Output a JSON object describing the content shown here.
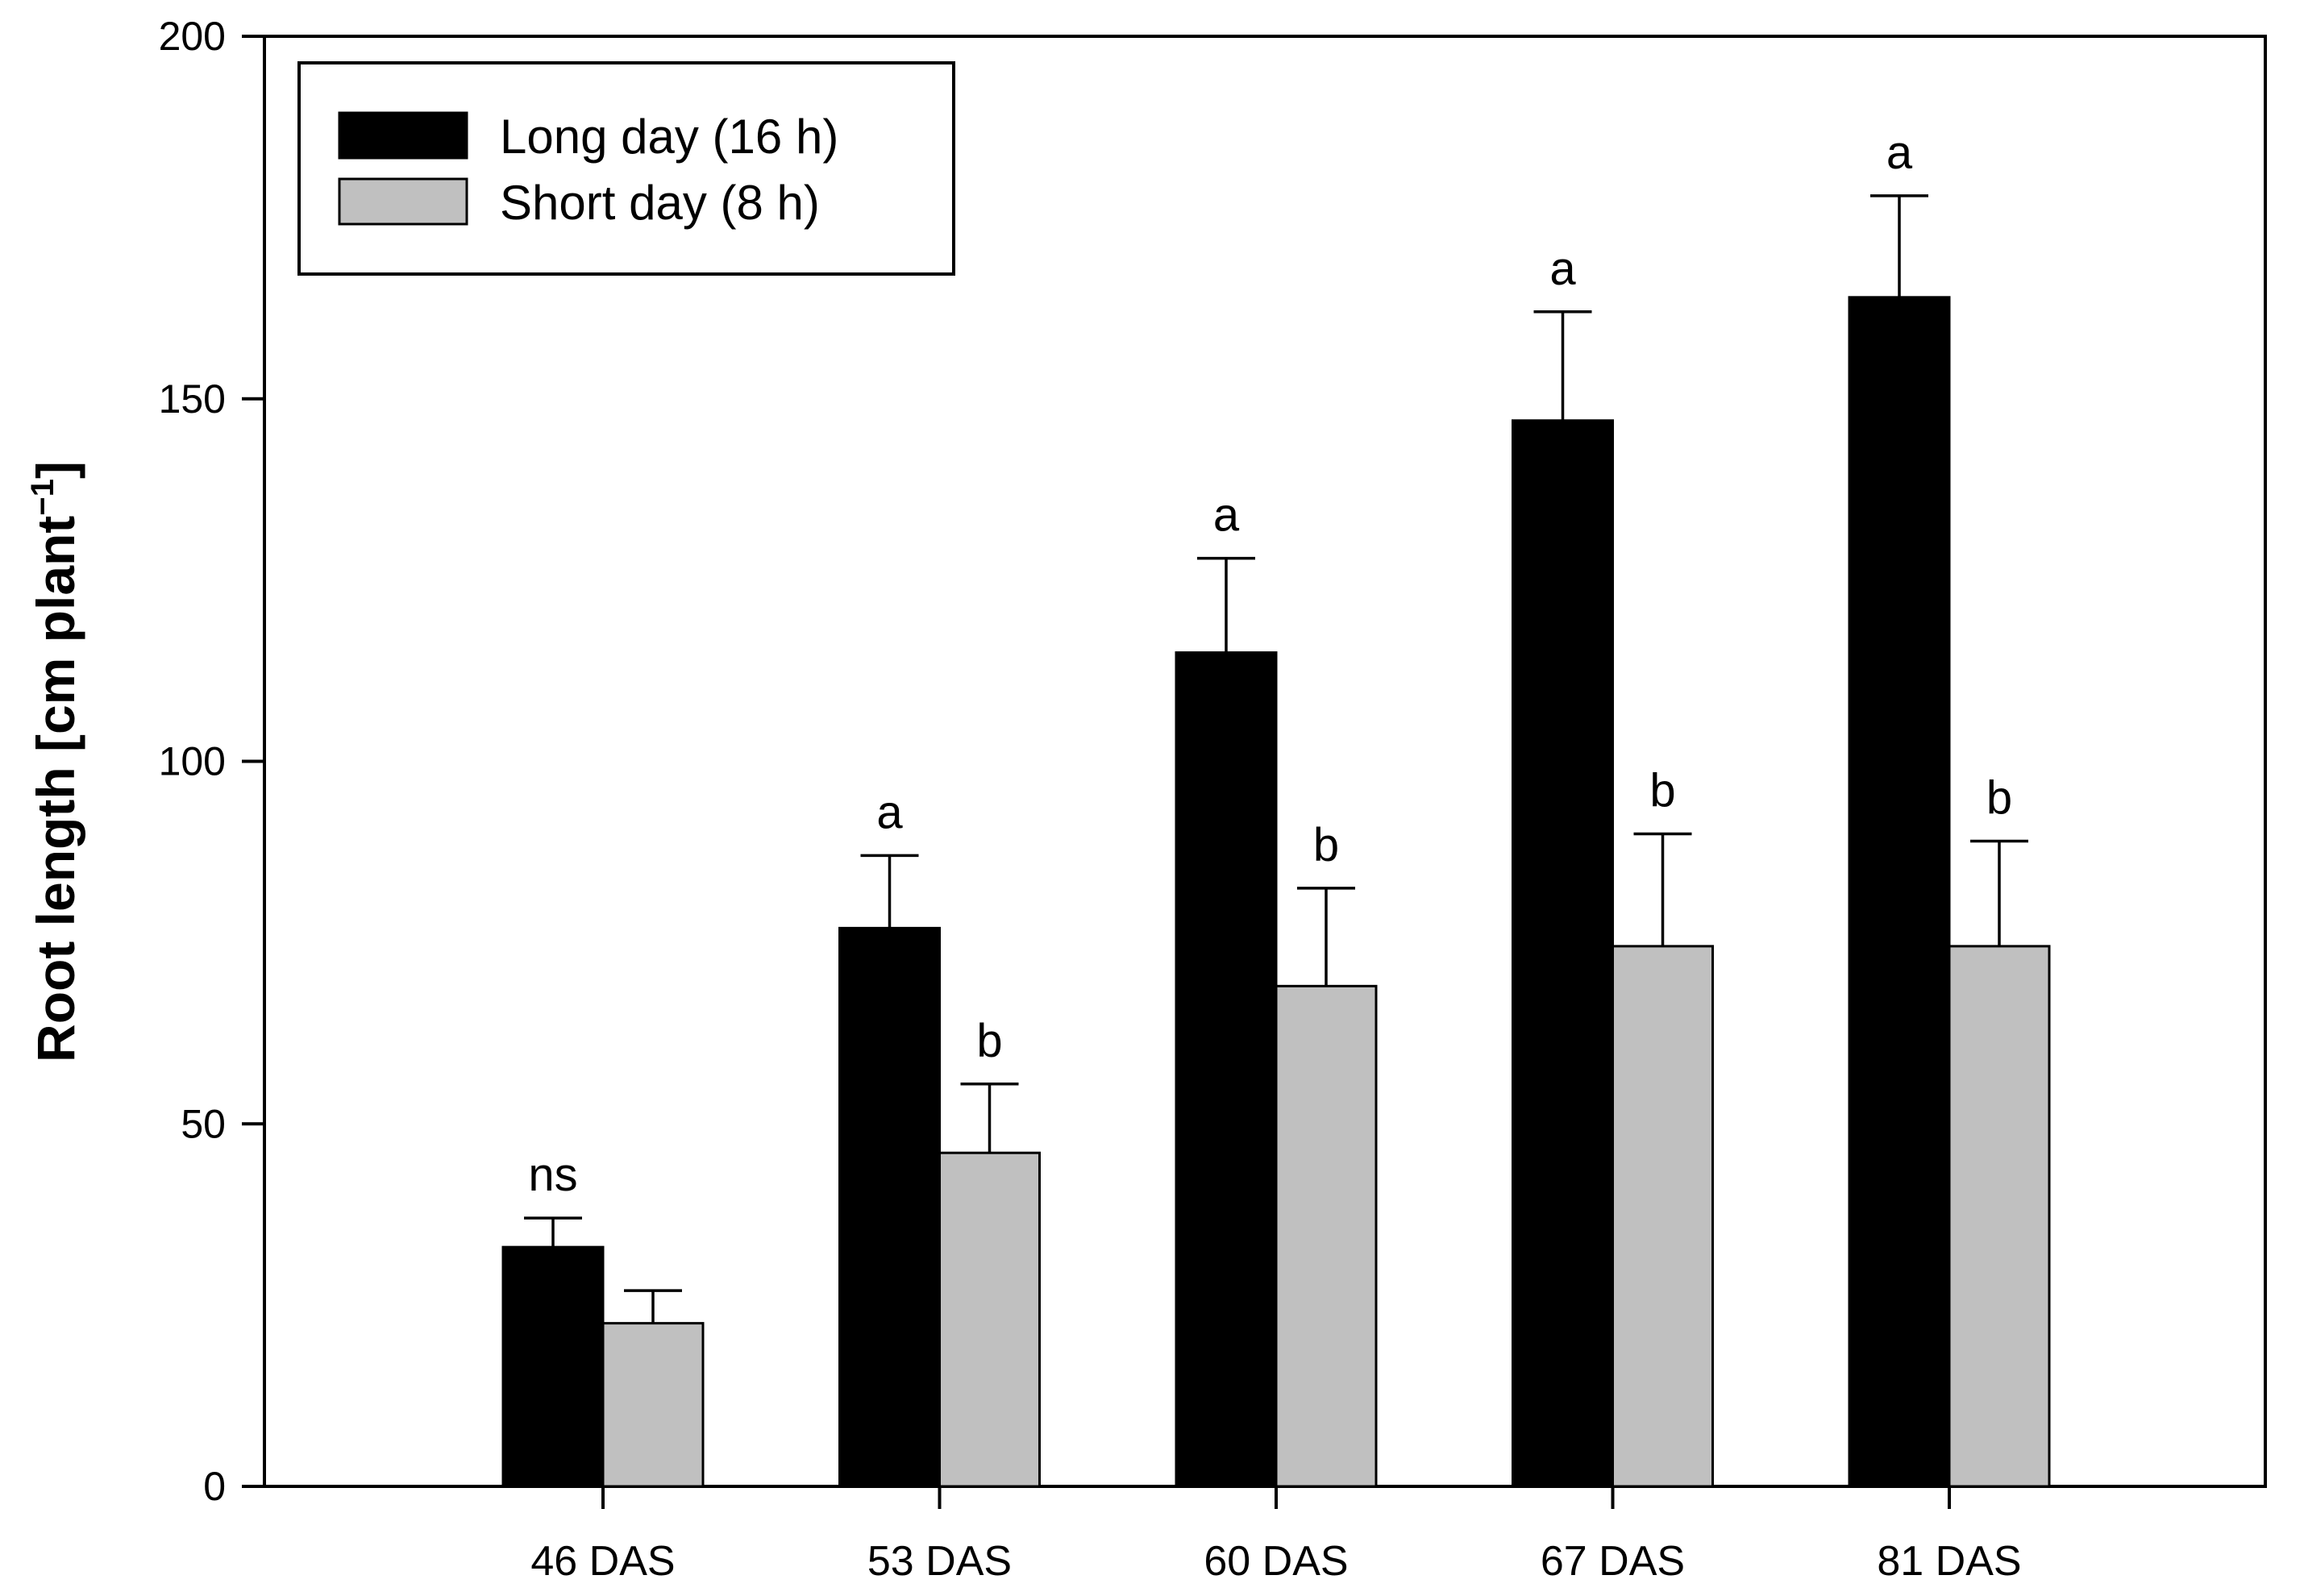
{
  "chart_data": {
    "type": "bar",
    "title": "",
    "xlabel": "",
    "ylabel": "Root length [cm plant",
    "ylabel_superscript": "−1",
    "ylabel_suffix": "]",
    "ylim": [
      0,
      200
    ],
    "yticks": [
      "0",
      "50",
      "100",
      "150",
      "200"
    ],
    "categories": [
      "46 DAS",
      "53 DAS",
      "60 DAS",
      "67 DAS",
      "81 DAS"
    ],
    "grid": false,
    "legend_position": "top-left",
    "series": [
      {
        "name": "Long day (16 h)",
        "color": "#000000",
        "values": [
          33,
          77,
          115,
          147,
          164
        ],
        "errors": [
          4,
          10,
          13,
          15,
          14
        ],
        "significance": [
          "ns",
          "a",
          "a",
          "a",
          "a"
        ]
      },
      {
        "name": "Short day (8 h)",
        "color": "#c0c0c0",
        "values": [
          22.5,
          46,
          69,
          74.5,
          74.5
        ],
        "errors": [
          4.5,
          9.5,
          13.5,
          15.5,
          14.5
        ],
        "significance": [
          "",
          "b",
          "b",
          "b",
          "b"
        ]
      }
    ]
  }
}
